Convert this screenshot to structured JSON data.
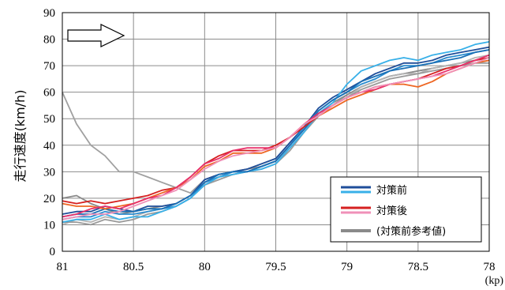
{
  "chart_data": {
    "type": "line",
    "title": "",
    "xlabel": "",
    "x_unit": "(kp)",
    "ylabel": "走行速度(km/h)",
    "xlim": [
      81,
      78
    ],
    "ylim": [
      0,
      90
    ],
    "x_ticks": [
      "81",
      "80.5",
      "80",
      "79.5",
      "79",
      "78.5",
      "78"
    ],
    "y_ticks": [
      "0",
      "10",
      "20",
      "30",
      "40",
      "50",
      "60",
      "70",
      "80",
      "90"
    ],
    "grid": true,
    "legend_position": "bottom-right",
    "annotation": "direction-arrow-right",
    "x": [
      81,
      80.9,
      80.8,
      80.7,
      80.6,
      80.5,
      80.4,
      80.3,
      80.2,
      80.1,
      80,
      79.9,
      79.8,
      79.7,
      79.6,
      79.5,
      79.4,
      79.3,
      79.2,
      79.1,
      79,
      78.9,
      78.8,
      78.7,
      78.6,
      78.5,
      78.4,
      78.3,
      78.2,
      78.1,
      78
    ],
    "series": [
      {
        "group": "対策前",
        "color": "#1f4e9a",
        "values": [
          14,
          15,
          15,
          17,
          16,
          15,
          17,
          17,
          18,
          21,
          27,
          29,
          30,
          31,
          33,
          35,
          41,
          47,
          54,
          58,
          61,
          64,
          67,
          69,
          71,
          71,
          72,
          74,
          75,
          76,
          77
        ]
      },
      {
        "group": "対策前",
        "color": "#2a8ccf",
        "values": [
          12,
          13,
          13,
          15,
          14,
          14,
          15,
          16,
          17,
          20,
          26,
          28,
          30,
          30,
          32,
          34,
          40,
          47,
          53,
          57,
          60,
          63,
          65,
          68,
          70,
          70,
          71,
          73,
          74,
          75,
          76
        ]
      },
      {
        "group": "対策前",
        "color": "#38b0e8",
        "values": [
          11,
          12,
          12,
          14,
          12,
          13,
          13,
          15,
          17,
          20,
          25,
          28,
          29,
          30,
          31,
          33,
          39,
          45,
          52,
          56,
          63,
          68,
          70,
          72,
          73,
          72,
          74,
          75,
          76,
          78,
          79
        ]
      },
      {
        "group": "対策前",
        "color": "#1a6fb5",
        "values": [
          13,
          14,
          14,
          16,
          15,
          15,
          16,
          16,
          18,
          21,
          26,
          29,
          30,
          30,
          32,
          34,
          40,
          46,
          53,
          57,
          60,
          64,
          66,
          68,
          69,
          70,
          71,
          72,
          73,
          75,
          76
        ]
      },
      {
        "group": "対策後",
        "color": "#d62020",
        "values": [
          19,
          18,
          19,
          18,
          19,
          20,
          21,
          23,
          24,
          28,
          33,
          36,
          38,
          38,
          38,
          40,
          43,
          47,
          51,
          55,
          58,
          60,
          62,
          63,
          64,
          65,
          67,
          69,
          70,
          72,
          73
        ]
      },
      {
        "group": "対策後",
        "color": "#ee6622",
        "values": [
          18,
          17,
          17,
          16,
          17,
          18,
          20,
          22,
          24,
          27,
          32,
          34,
          37,
          37,
          37,
          39,
          43,
          48,
          51,
          54,
          57,
          59,
          61,
          63,
          63,
          62,
          64,
          67,
          69,
          71,
          72
        ]
      },
      {
        "group": "対策後",
        "color": "#e8306a",
        "values": [
          13,
          14,
          16,
          17,
          16,
          18,
          20,
          21,
          24,
          28,
          33,
          35,
          38,
          39,
          39,
          39,
          43,
          48,
          52,
          55,
          58,
          60,
          61,
          63,
          64,
          65,
          66,
          68,
          70,
          72,
          74
        ]
      },
      {
        "group": "対策後",
        "color": "#f090b8",
        "values": [
          12,
          13,
          14,
          14,
          15,
          17,
          19,
          21,
          23,
          27,
          31,
          34,
          36,
          37,
          38,
          39,
          43,
          48,
          51,
          55,
          58,
          60,
          62,
          63,
          64,
          65,
          66,
          67,
          69,
          71,
          73
        ]
      },
      {
        "group": "(対策前参考値)",
        "color": "#a0a0a0",
        "values": [
          60,
          48,
          40,
          36,
          30,
          30,
          28,
          26,
          24,
          22,
          27,
          29,
          30,
          31,
          33,
          35,
          41,
          47,
          52,
          55,
          59,
          62,
          64,
          66,
          67,
          68,
          69,
          70,
          70,
          71,
          72
        ]
      },
      {
        "group": "(対策前参考値)",
        "color": "#8a8a8a",
        "values": [
          20,
          21,
          18,
          16,
          14,
          15,
          16,
          17,
          18,
          21,
          26,
          28,
          30,
          31,
          32,
          34,
          40,
          46,
          52,
          56,
          59,
          62,
          64,
          66,
          67,
          68,
          69,
          70,
          71,
          72,
          73
        ]
      },
      {
        "group": "(対策前参考値)",
        "color": "#b4b4b4",
        "values": [
          10,
          12,
          11,
          13,
          12,
          13,
          15,
          16,
          18,
          21,
          25,
          28,
          29,
          30,
          32,
          34,
          39,
          45,
          51,
          55,
          58,
          62,
          64,
          66,
          67,
          67,
          69,
          70,
          71,
          73,
          74
        ]
      },
      {
        "group": "(対策前参考値)",
        "color": "#9a9a9a",
        "values": [
          11,
          11,
          10,
          12,
          11,
          12,
          14,
          15,
          17,
          20,
          25,
          27,
          29,
          30,
          31,
          33,
          38,
          45,
          51,
          55,
          58,
          61,
          63,
          65,
          66,
          67,
          68,
          69,
          70,
          71,
          71
        ]
      }
    ],
    "legend": [
      {
        "label": "対策前",
        "colors": [
          "#1f4e9a",
          "#38b0e8"
        ]
      },
      {
        "label": "対策後",
        "colors": [
          "#d62020",
          "#f090b8"
        ]
      },
      {
        "label": "(対策前参考値)",
        "colors": [
          "#8a8a8a"
        ]
      }
    ]
  }
}
